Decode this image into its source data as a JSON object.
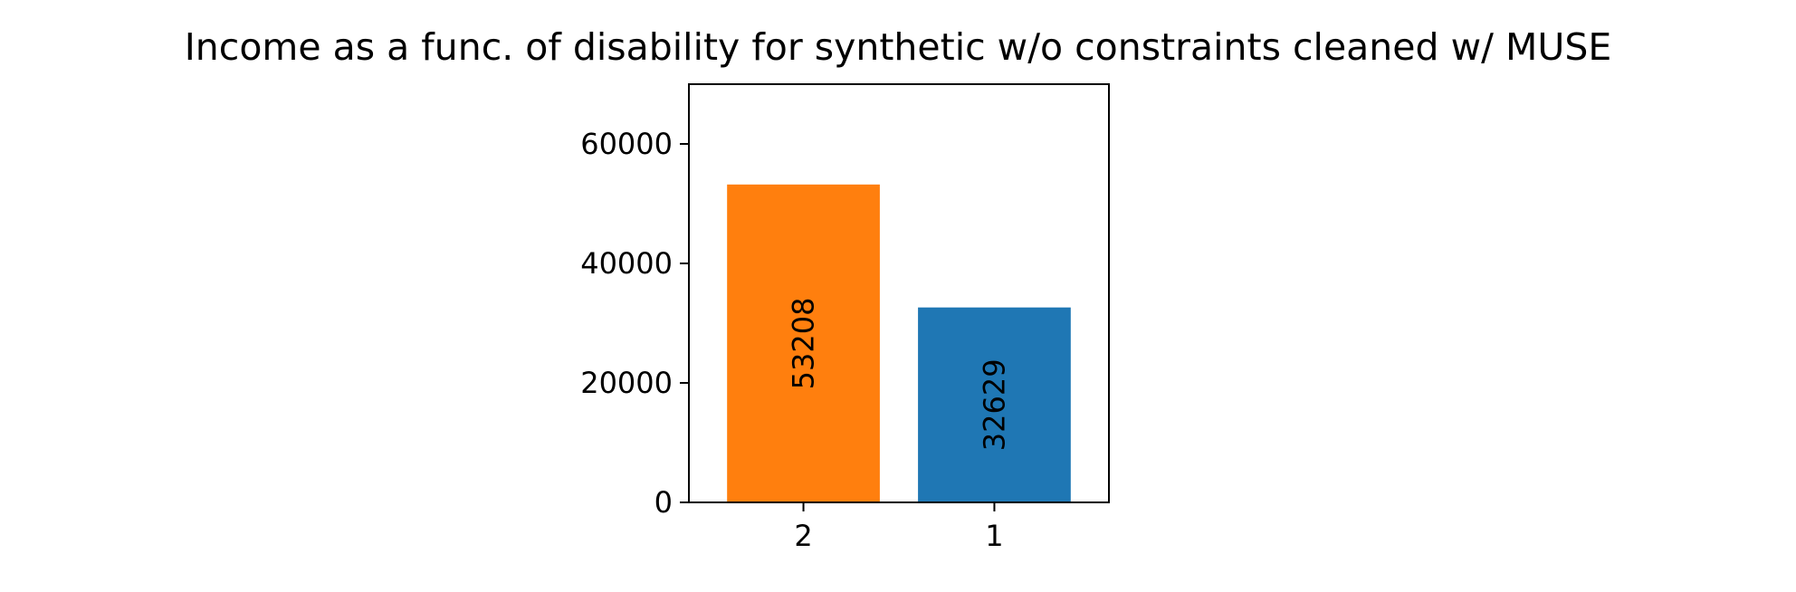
{
  "chart_data": {
    "type": "bar",
    "title": "Income as a func. of disability for synthetic w/o constraints cleaned w/ MUSE",
    "xlabel": "",
    "ylabel": "",
    "categories": [
      "2",
      "1"
    ],
    "values": [
      53208,
      32629
    ],
    "data_labels": [
      "53208",
      "32629"
    ],
    "colors": [
      "#ff7f0e",
      "#1f77b4"
    ],
    "ylim": [
      0,
      70000
    ],
    "yticks": [
      0,
      20000,
      40000,
      60000
    ],
    "ytick_labels": [
      "0",
      "20000",
      "40000",
      "60000"
    ],
    "grid": false,
    "legend": "none"
  }
}
